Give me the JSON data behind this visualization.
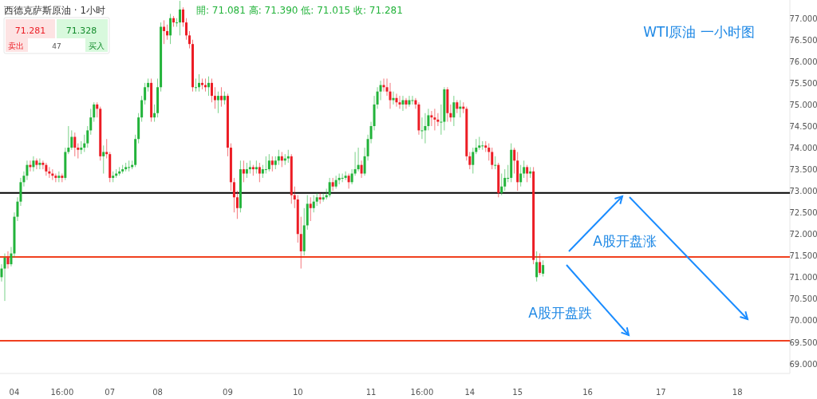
{
  "chart_data": {
    "type": "candlestick",
    "title": "西德克萨斯原油 · 1小时",
    "subtitle": "WTI原油 一小时图",
    "annotations": [
      "開: 71.081  高: 71.390  低: 71.015  收: 71.281",
      "71.281",
      "71.328",
      "卖出",
      "47",
      "买入",
      "A股开盘涨",
      "A股开盘跌"
    ],
    "categories": [
      null,
      null,
      null,
      null,
      "04",
      null,
      null,
      null,
      null,
      null,
      null,
      null,
      null,
      null,
      null,
      null,
      null,
      null,
      null,
      "16:00",
      null,
      null,
      null,
      null,
      null,
      null,
      null,
      null,
      null,
      null,
      null,
      null,
      null,
      null,
      "07",
      null,
      null,
      null,
      null,
      null,
      null,
      null,
      null,
      null,
      null,
      null,
      null,
      null,
      null,
      "08",
      null,
      null,
      null,
      null,
      null,
      null,
      null,
      null,
      null,
      null,
      null,
      null,
      null,
      null,
      null,
      null,
      null,
      null,
      null,
      null,
      null,
      "09",
      null,
      null,
      null,
      null,
      null,
      null,
      null,
      null,
      null,
      null,
      null,
      null,
      null,
      null,
      null,
      null,
      null,
      null,
      null,
      null,
      null,
      "10",
      null,
      null,
      null,
      null,
      null,
      null,
      null,
      null,
      null,
      null,
      null,
      null,
      null,
      null,
      null,
      null,
      null,
      null,
      null,
      null,
      null,
      null,
      "11",
      null,
      null,
      null,
      null,
      null,
      null,
      null,
      null,
      null,
      null,
      null,
      null,
      null,
      null,
      null,
      "16:00",
      null,
      null,
      null,
      null,
      null,
      null,
      null,
      null,
      null,
      null,
      null,
      null,
      null,
      null,
      "14",
      null,
      null,
      null,
      null,
      null,
      null,
      null,
      null,
      null,
      null,
      null,
      null,
      null,
      null,
      "15",
      null,
      null,
      null,
      null,
      null,
      null,
      null,
      null,
      null,
      null,
      null,
      null,
      null,
      null,
      null,
      null,
      null,
      null,
      null,
      null,
      null,
      "16",
      null,
      null,
      null,
      null,
      null,
      null,
      null,
      null,
      null,
      null,
      null,
      null,
      null,
      null,
      null,
      null,
      null,
      null,
      null,
      null,
      null,
      null,
      "17",
      null,
      null,
      null,
      null,
      null,
      null,
      null,
      null,
      null,
      null,
      null,
      null,
      null,
      null,
      null,
      null,
      null,
      null,
      null,
      null,
      null,
      null,
      null,
      "18",
      null,
      null,
      null,
      null,
      null,
      null,
      null,
      null,
      null,
      null,
      null,
      null,
      null,
      null,
      null,
      null
    ],
    "ohlc": [
      [
        71.0,
        71.3,
        70.9,
        71.2
      ],
      [
        71.2,
        71.55,
        70.45,
        71.45
      ],
      [
        71.45,
        71.6,
        71.2,
        71.3
      ],
      [
        71.3,
        71.7,
        71.25,
        71.55
      ],
      [
        71.55,
        72.5,
        71.45,
        72.4
      ],
      [
        72.4,
        72.85,
        72.3,
        72.75
      ],
      [
        72.75,
        73.3,
        72.65,
        73.2
      ],
      [
        73.2,
        73.45,
        73.1,
        73.35
      ],
      [
        73.35,
        73.7,
        73.25,
        73.6
      ],
      [
        73.6,
        73.7,
        73.45,
        73.55
      ],
      [
        73.55,
        73.8,
        73.45,
        73.7
      ],
      [
        73.7,
        73.75,
        73.5,
        73.6
      ],
      [
        73.6,
        73.75,
        73.5,
        73.65
      ],
      [
        73.65,
        73.7,
        73.5,
        73.6
      ],
      [
        73.6,
        73.65,
        73.35,
        73.45
      ],
      [
        73.45,
        73.55,
        73.3,
        73.4
      ],
      [
        73.4,
        73.5,
        73.25,
        73.35
      ],
      [
        73.35,
        73.4,
        73.2,
        73.3
      ],
      [
        73.3,
        73.45,
        73.2,
        73.35
      ],
      [
        73.35,
        73.4,
        73.2,
        73.3
      ],
      [
        73.3,
        74.0,
        73.25,
        73.9
      ],
      [
        73.9,
        74.5,
        73.85,
        74.0
      ],
      [
        74.0,
        74.4,
        73.95,
        74.25
      ],
      [
        74.25,
        74.35,
        73.8,
        74.0
      ],
      [
        74.0,
        74.1,
        73.75,
        73.95
      ],
      [
        73.95,
        74.15,
        73.85,
        74.0
      ],
      [
        74.0,
        74.3,
        73.9,
        74.1
      ],
      [
        74.1,
        74.5,
        74.0,
        74.4
      ],
      [
        74.4,
        74.9,
        74.3,
        74.7
      ],
      [
        74.7,
        75.05,
        74.6,
        75.0
      ],
      [
        75.0,
        75.05,
        74.7,
        74.9
      ],
      [
        74.9,
        74.95,
        73.7,
        73.8
      ],
      [
        73.8,
        74.05,
        73.4,
        73.9
      ],
      [
        73.9,
        74.2,
        73.75,
        73.85
      ],
      [
        73.85,
        73.9,
        73.2,
        73.3
      ],
      [
        73.3,
        73.45,
        73.2,
        73.35
      ],
      [
        73.35,
        73.5,
        73.3,
        73.4
      ],
      [
        73.4,
        73.55,
        73.35,
        73.45
      ],
      [
        73.45,
        73.6,
        73.4,
        73.5
      ],
      [
        73.5,
        73.65,
        73.45,
        73.55
      ],
      [
        73.55,
        73.7,
        73.45,
        73.55
      ],
      [
        73.55,
        73.7,
        73.5,
        73.6
      ],
      [
        73.6,
        74.3,
        73.55,
        74.2
      ],
      [
        74.2,
        74.8,
        74.1,
        74.7
      ],
      [
        74.7,
        75.2,
        74.6,
        75.1
      ],
      [
        75.1,
        75.5,
        75.0,
        75.4
      ],
      [
        75.4,
        75.6,
        75.3,
        75.5
      ],
      [
        75.5,
        75.6,
        74.6,
        74.7
      ],
      [
        74.7,
        75.0,
        74.6,
        74.8
      ],
      [
        74.8,
        75.6,
        74.7,
        75.4
      ],
      [
        75.4,
        76.9,
        75.3,
        76.8
      ],
      [
        76.8,
        76.95,
        76.4,
        76.7
      ],
      [
        76.7,
        76.85,
        76.5,
        76.6
      ],
      [
        76.6,
        77.1,
        76.4,
        77.0
      ],
      [
        77.0,
        77.05,
        76.8,
        76.9
      ],
      [
        76.9,
        77.0,
        76.8,
        76.9
      ],
      [
        76.9,
        77.4,
        76.6,
        77.2
      ],
      [
        77.2,
        77.25,
        76.8,
        76.9
      ],
      [
        76.9,
        77.0,
        76.5,
        76.6
      ],
      [
        76.6,
        76.7,
        76.3,
        76.4
      ],
      [
        76.4,
        76.5,
        75.3,
        75.4
      ],
      [
        75.4,
        75.6,
        75.3,
        75.4
      ],
      [
        75.4,
        75.7,
        75.3,
        75.5
      ],
      [
        75.5,
        75.6,
        75.35,
        75.45
      ],
      [
        75.45,
        75.6,
        75.3,
        75.4
      ],
      [
        75.4,
        75.65,
        75.2,
        75.5
      ],
      [
        75.5,
        75.6,
        75.05,
        75.2
      ],
      [
        75.2,
        75.4,
        74.9,
        75.1
      ],
      [
        75.1,
        75.3,
        74.8,
        75.2
      ],
      [
        75.2,
        75.4,
        74.95,
        75.1
      ],
      [
        75.1,
        75.3,
        75.0,
        75.2
      ],
      [
        75.2,
        75.25,
        73.8,
        74.0
      ],
      [
        74.0,
        74.1,
        73.0,
        73.2
      ],
      [
        73.2,
        73.3,
        72.5,
        72.85
      ],
      [
        72.85,
        73.0,
        72.35,
        72.6
      ],
      [
        72.6,
        73.7,
        72.5,
        73.5
      ],
      [
        73.5,
        73.7,
        73.2,
        73.4
      ],
      [
        73.4,
        73.65,
        73.3,
        73.5
      ],
      [
        73.5,
        73.7,
        73.4,
        73.55
      ],
      [
        73.55,
        73.6,
        73.35,
        73.5
      ],
      [
        73.5,
        73.7,
        73.4,
        73.55
      ],
      [
        73.55,
        73.65,
        73.2,
        73.4
      ],
      [
        73.4,
        73.6,
        73.3,
        73.5
      ],
      [
        73.5,
        73.8,
        73.4,
        73.5
      ],
      [
        73.5,
        73.85,
        73.45,
        73.7
      ],
      [
        73.7,
        73.8,
        73.45,
        73.6
      ],
      [
        73.6,
        73.8,
        73.5,
        73.7
      ],
      [
        73.7,
        73.95,
        73.6,
        73.8
      ],
      [
        73.8,
        73.9,
        73.55,
        73.7
      ],
      [
        73.7,
        73.85,
        73.6,
        73.75
      ],
      [
        73.75,
        73.95,
        73.65,
        73.8
      ],
      [
        73.8,
        73.85,
        72.7,
        72.9
      ],
      [
        72.9,
        73.1,
        72.6,
        72.8
      ],
      [
        72.8,
        72.9,
        71.8,
        72.0
      ],
      [
        72.0,
        72.4,
        71.2,
        71.6
      ],
      [
        71.6,
        72.6,
        71.5,
        72.2
      ],
      [
        72.2,
        72.9,
        72.1,
        72.7
      ],
      [
        72.7,
        72.85,
        72.3,
        72.6
      ],
      [
        72.6,
        72.9,
        72.5,
        72.75
      ],
      [
        72.75,
        72.95,
        72.65,
        72.85
      ],
      [
        72.85,
        72.95,
        72.7,
        72.8
      ],
      [
        72.8,
        72.95,
        72.75,
        72.85
      ],
      [
        72.85,
        73.05,
        72.8,
        72.9
      ],
      [
        72.9,
        73.3,
        72.85,
        73.2
      ],
      [
        73.2,
        73.3,
        73.0,
        73.1
      ],
      [
        73.1,
        73.35,
        73.05,
        73.25
      ],
      [
        73.25,
        73.4,
        73.15,
        73.3
      ],
      [
        73.3,
        73.4,
        73.2,
        73.3
      ],
      [
        73.3,
        73.45,
        73.25,
        73.35
      ],
      [
        73.35,
        73.4,
        73.05,
        73.2
      ],
      [
        73.2,
        73.5,
        73.15,
        73.4
      ],
      [
        73.4,
        73.9,
        73.35,
        73.5
      ],
      [
        73.5,
        74.0,
        73.45,
        73.6
      ],
      [
        73.6,
        73.7,
        73.3,
        73.4
      ],
      [
        73.4,
        74.0,
        73.35,
        73.8
      ],
      [
        73.8,
        74.3,
        73.7,
        74.2
      ],
      [
        74.2,
        74.6,
        74.1,
        74.5
      ],
      [
        74.5,
        75.2,
        74.4,
        75.0
      ],
      [
        75.0,
        75.4,
        74.9,
        75.3
      ],
      [
        75.3,
        75.55,
        75.1,
        75.45
      ],
      [
        75.45,
        75.6,
        75.3,
        75.4
      ],
      [
        75.4,
        75.6,
        75.2,
        75.3
      ],
      [
        75.3,
        75.5,
        74.9,
        75.1
      ],
      [
        75.1,
        75.3,
        75.0,
        75.15
      ],
      [
        75.15,
        75.25,
        74.95,
        75.05
      ],
      [
        75.05,
        75.2,
        74.9,
        75.0
      ],
      [
        75.0,
        75.2,
        74.85,
        75.1
      ],
      [
        75.1,
        75.15,
        74.9,
        75.0
      ],
      [
        75.0,
        75.2,
        74.95,
        75.1
      ],
      [
        75.1,
        75.2,
        75.0,
        75.1
      ],
      [
        75.1,
        75.15,
        74.9,
        75.0
      ],
      [
        75.0,
        75.05,
        74.3,
        74.4
      ],
      [
        74.4,
        74.7,
        74.2,
        74.4
      ],
      [
        74.4,
        74.8,
        74.1,
        74.5
      ],
      [
        74.5,
        74.9,
        74.4,
        74.75
      ],
      [
        74.75,
        74.85,
        74.5,
        74.7
      ],
      [
        74.7,
        74.9,
        74.4,
        74.65
      ],
      [
        74.65,
        74.8,
        74.5,
        74.6
      ],
      [
        74.6,
        75.0,
        74.3,
        74.6
      ],
      [
        74.6,
        75.4,
        74.4,
        75.35
      ],
      [
        75.35,
        75.4,
        74.6,
        74.8
      ],
      [
        74.8,
        75.0,
        74.6,
        74.7
      ],
      [
        74.7,
        75.2,
        74.5,
        75.05
      ],
      [
        75.05,
        75.1,
        74.8,
        74.9
      ],
      [
        74.9,
        75.1,
        74.7,
        74.95
      ],
      [
        74.95,
        75.05,
        74.8,
        74.9
      ],
      [
        74.9,
        74.95,
        73.7,
        73.8
      ],
      [
        73.8,
        73.9,
        73.5,
        73.6
      ],
      [
        73.6,
        74.0,
        73.4,
        73.9
      ],
      [
        73.9,
        74.2,
        73.85,
        74.0
      ],
      [
        74.0,
        74.25,
        73.95,
        74.05
      ],
      [
        74.05,
        74.15,
        73.95,
        74.05
      ],
      [
        74.05,
        74.15,
        73.9,
        74.0
      ],
      [
        74.0,
        74.1,
        73.7,
        73.9
      ],
      [
        73.9,
        74.0,
        73.5,
        73.6
      ],
      [
        73.6,
        73.8,
        73.5,
        73.6
      ],
      [
        73.6,
        73.65,
        72.85,
        72.95
      ],
      [
        72.95,
        73.4,
        72.9,
        73.1
      ],
      [
        73.1,
        73.5,
        73.0,
        73.3
      ],
      [
        73.3,
        73.6,
        73.2,
        73.3
      ],
      [
        73.3,
        74.1,
        73.2,
        73.95
      ],
      [
        73.95,
        74.0,
        73.4,
        73.7
      ],
      [
        73.7,
        73.9,
        73.0,
        73.2
      ],
      [
        73.2,
        73.6,
        73.1,
        73.4
      ],
      [
        73.4,
        73.7,
        73.3,
        73.55
      ],
      [
        73.55,
        73.6,
        73.2,
        73.4
      ],
      [
        73.4,
        73.55,
        73.3,
        73.45
      ],
      [
        73.45,
        73.55,
        71.3,
        71.4
      ],
      [
        71.0,
        71.6,
        70.9,
        71.35
      ],
      [
        71.35,
        71.55,
        71.05,
        71.1
      ],
      [
        71.081,
        71.39,
        71.015,
        71.281
      ],
      null,
      null,
      null,
      null,
      null,
      null,
      null,
      null,
      null,
      null,
      null,
      null,
      null,
      null,
      null,
      null,
      null,
      null,
      null,
      null,
      null,
      null,
      null,
      null,
      null,
      null,
      null,
      null,
      null,
      null,
      null,
      null,
      null,
      null,
      null,
      null,
      null,
      null,
      null,
      null,
      null,
      null,
      null,
      null,
      null,
      null,
      null,
      null,
      null,
      null,
      null,
      null,
      null,
      null,
      null,
      null,
      null,
      null,
      null,
      null,
      null,
      null,
      null,
      null,
      null,
      null,
      null,
      null,
      null,
      null,
      null,
      null,
      null,
      null,
      null,
      null,
      null
    ],
    "ylim": [
      68.77,
      77.42
    ],
    "yticks": [
      {
        "value": 69,
        "label": "69.000"
      },
      {
        "value": 69.5,
        "label": "69.500"
      },
      {
        "value": 70,
        "label": "70.000"
      },
      {
        "value": 70.5,
        "label": "70.500"
      },
      {
        "value": 71,
        "label": "71.000"
      },
      {
        "value": 71.5,
        "label": "71.500"
      },
      {
        "value": 72,
        "label": "72.000"
      },
      {
        "value": 72.5,
        "label": "72.500"
      },
      {
        "value": 73,
        "label": "73.000"
      },
      {
        "value": 73.5,
        "label": "73.500"
      },
      {
        "value": 74,
        "label": "74.000"
      },
      {
        "value": 74.5,
        "label": "74.500"
      },
      {
        "value": 75,
        "label": "75.000"
      },
      {
        "value": 75.5,
        "label": "75.500"
      },
      {
        "value": 76,
        "label": "76.000"
      },
      {
        "value": 76.5,
        "label": "76.500"
      },
      {
        "value": 77,
        "label": "77.000"
      }
    ],
    "ref_lines": [
      {
        "axis": "y",
        "value": 72.95,
        "color": "#000000"
      },
      {
        "axis": "y",
        "value": 71.47,
        "color": "#f0401f"
      },
      {
        "axis": "y",
        "value": 69.53,
        "color": "#f0401f"
      }
    ]
  }
}
